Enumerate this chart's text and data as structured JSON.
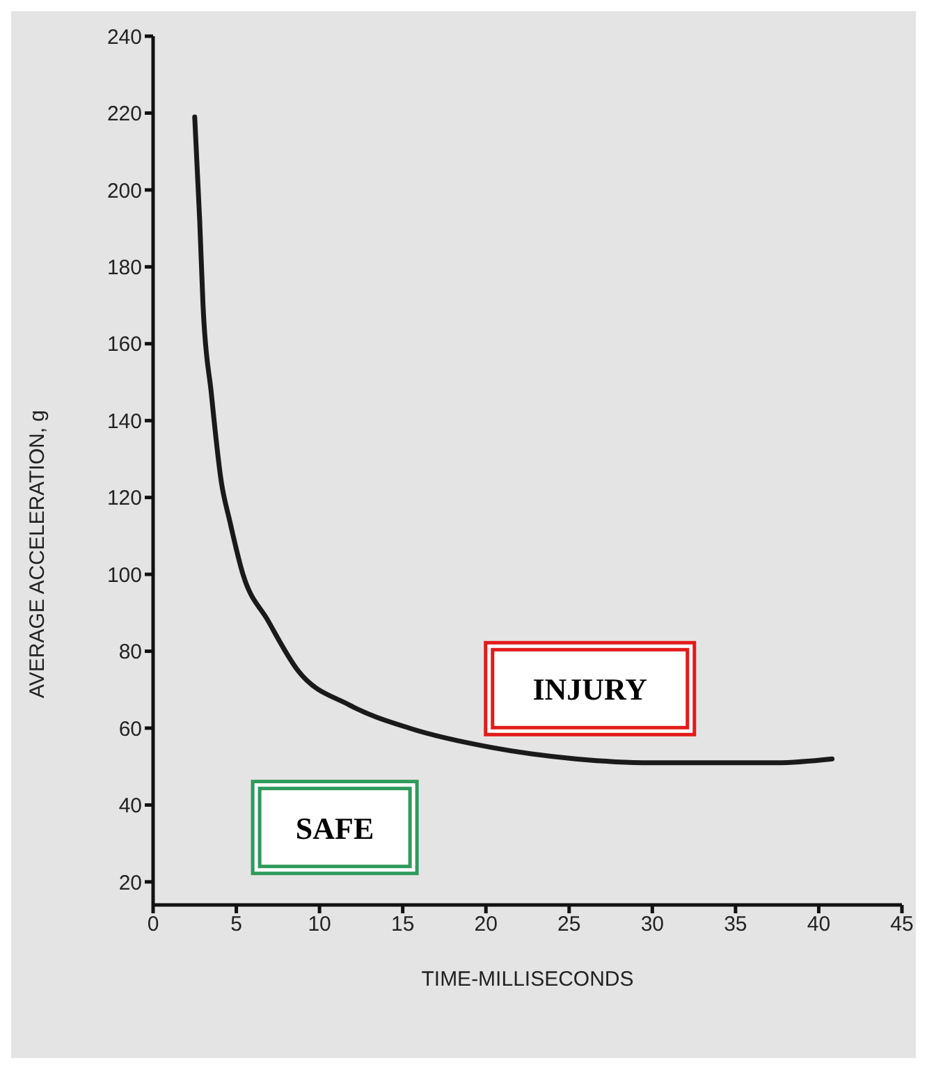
{
  "chart_data": {
    "type": "line",
    "xlabel": "TIME-MILLISECONDS",
    "ylabel": "AVERAGE ACCELERATION, g",
    "x": [
      2.5,
      2.8,
      3.0,
      3.5,
      4.1,
      4.6,
      5.4,
      6.9,
      8.7,
      11.8,
      15.4,
      20.3,
      25.4,
      29.9,
      33,
      37.5,
      40.8
    ],
    "series": [
      {
        "color": "#1a1a1a",
        "values": [
          219,
          192,
          170,
          147,
          124,
          114,
          100,
          88,
          75,
          66,
          60,
          55,
          52,
          51,
          51,
          51,
          52
        ]
      }
    ],
    "xlim": [
      0,
      45
    ],
    "xticks": [
      0,
      5,
      10,
      15,
      20,
      25,
      30,
      35,
      40,
      45
    ],
    "ylim": [
      14,
      240
    ],
    "yticks": [
      20,
      40,
      60,
      80,
      100,
      120,
      140,
      160,
      180,
      200,
      220,
      240
    ],
    "grid": false,
    "legend": false,
    "marker": "none",
    "line_style": "solid",
    "annotations": [
      "INJURY",
      "SAFE"
    ]
  }
}
